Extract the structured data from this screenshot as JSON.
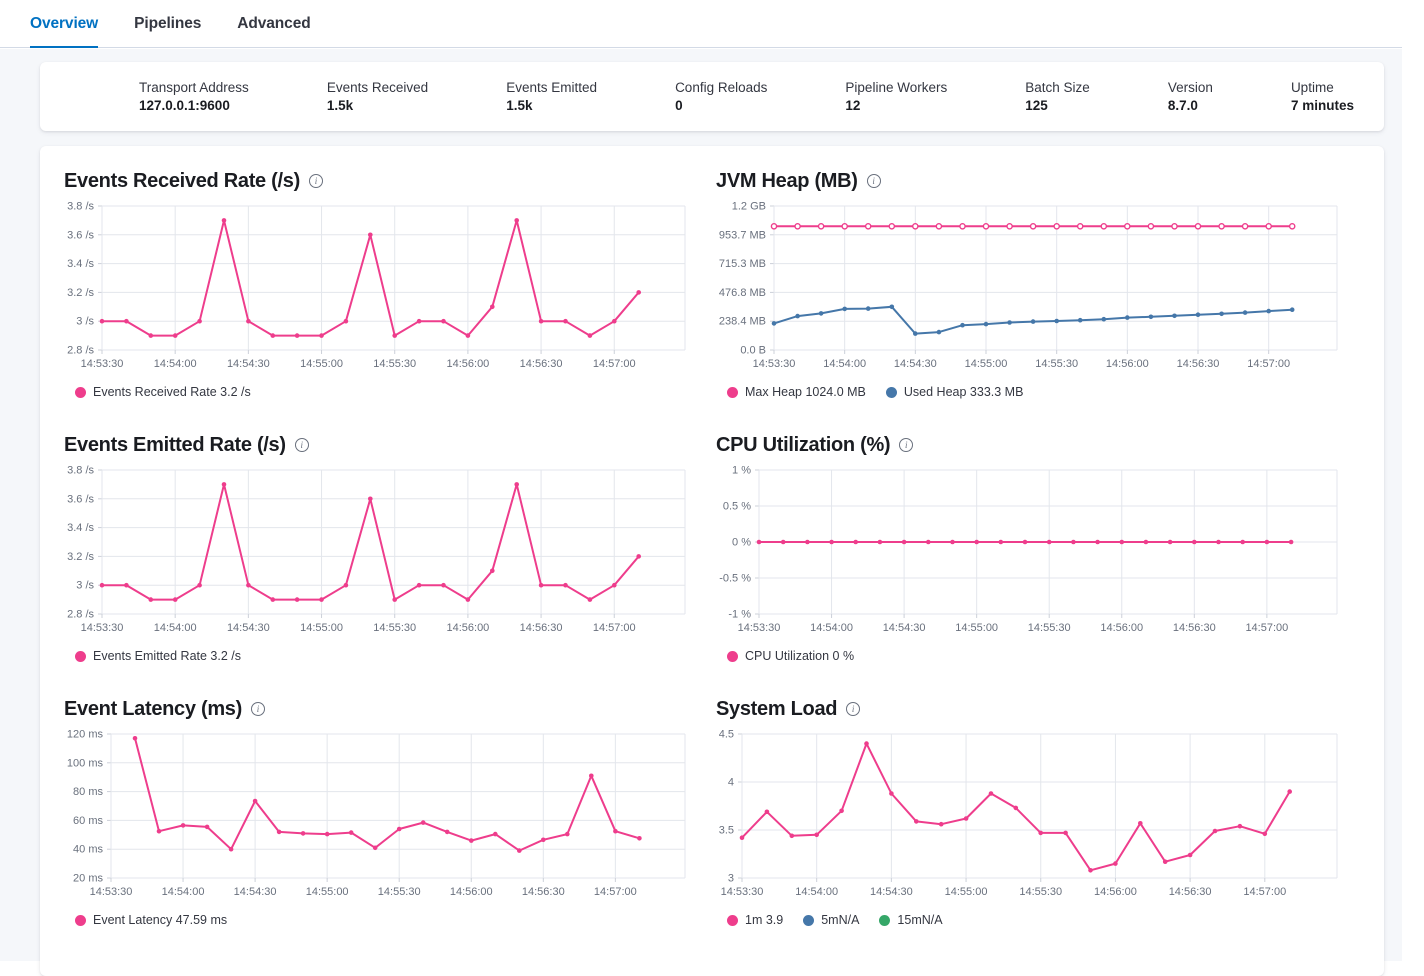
{
  "tabs": [
    {
      "label": "Overview",
      "active": true
    },
    {
      "label": "Pipelines",
      "active": false
    },
    {
      "label": "Advanced",
      "active": false
    }
  ],
  "stats": {
    "items": [
      {
        "label": "Transport Address",
        "value": "127.0.0.1:9600"
      },
      {
        "label": "Events Received",
        "value": "1.5k"
      },
      {
        "label": "Events Emitted",
        "value": "1.5k"
      },
      {
        "label": "Config Reloads",
        "value": "0"
      },
      {
        "label": "Pipeline Workers",
        "value": "12"
      },
      {
        "label": "Batch Size",
        "value": "125"
      },
      {
        "label": "Version",
        "value": "8.7.0"
      },
      {
        "label": "Uptime",
        "value": "7 minutes"
      }
    ]
  },
  "icons": {
    "info": "i"
  },
  "colors": {
    "accent_pink": "#ee3d8c",
    "series_blue": "#4577a9",
    "series_green": "#35a768",
    "tab_active": "#0071c2",
    "grid": "#e3e6ec",
    "axis_text": "#69707d"
  },
  "chart_data": [
    {
      "type": "line",
      "title": "Events Received Rate (/s)",
      "x": {
        "tick_labels": [
          "14:53:30",
          "14:54:00",
          "14:54:30",
          "14:55:00",
          "14:55:30",
          "14:56:00",
          "14:56:30",
          "14:57:00"
        ],
        "tick_positions": [
          0,
          3,
          6,
          9,
          12,
          15,
          18,
          21
        ],
        "max": 23.9
      },
      "y": {
        "min": 2.8,
        "max": 3.8,
        "ticks": [
          {
            "value": 3.8,
            "label": "3.8 /s"
          },
          {
            "value": 3.6,
            "label": "3.6 /s"
          },
          {
            "value": 3.4,
            "label": "3.4 /s"
          },
          {
            "value": 3.2,
            "label": "3.2 /s"
          },
          {
            "value": 3.0,
            "label": "3 /s"
          },
          {
            "value": 2.8,
            "label": "2.8 /s"
          }
        ]
      },
      "series": [
        {
          "name": "Events Received Rate",
          "color": "#ee3d8c",
          "marker": "filled",
          "start": 0,
          "values": [
            3,
            3,
            2.9,
            2.9,
            3,
            3.7,
            3,
            2.9,
            2.9,
            2.9,
            3,
            3.6,
            2.9,
            3,
            3,
            2.9,
            3.1,
            3.7,
            3,
            3,
            2.9,
            3,
            3.2
          ]
        }
      ],
      "legend": [
        {
          "text": "Events Received Rate 3.2 /s",
          "color": "#ee3d8c"
        }
      ]
    },
    {
      "type": "line",
      "title": "JVM Heap (MB)",
      "x": {
        "tick_labels": [
          "14:53:30",
          "14:54:00",
          "14:54:30",
          "14:55:00",
          "14:55:30",
          "14:56:00",
          "14:56:30",
          "14:57:00"
        ],
        "tick_positions": [
          0,
          3,
          6,
          9,
          12,
          15,
          18,
          21
        ],
        "max": 23.9
      },
      "y": {
        "min": 0,
        "max": 1192.1,
        "ticks": [
          {
            "value": 1192.1,
            "label": "1.2 GB"
          },
          {
            "value": 953.7,
            "label": "953.7 MB"
          },
          {
            "value": 715.3,
            "label": "715.3 MB"
          },
          {
            "value": 476.8,
            "label": "476.8 MB"
          },
          {
            "value": 238.4,
            "label": "238.4 MB"
          },
          {
            "value": 0,
            "label": "0.0 B"
          }
        ]
      },
      "series": [
        {
          "name": "Max Heap",
          "color": "#ee3d8c",
          "marker": "open",
          "start": 0,
          "values": [
            1024,
            1024,
            1024,
            1024,
            1024,
            1024,
            1024,
            1024,
            1024,
            1024,
            1024,
            1024,
            1024,
            1024,
            1024,
            1024,
            1024,
            1024,
            1024,
            1024,
            1024,
            1024,
            1024
          ]
        },
        {
          "name": "Used Heap",
          "color": "#4577a9",
          "marker": "filled",
          "start": 0,
          "values": [
            220,
            281,
            303,
            340,
            343,
            358,
            136,
            148,
            205,
            214,
            228,
            235,
            240,
            247,
            255,
            268,
            275,
            283,
            292,
            300,
            310,
            322,
            333.3
          ]
        }
      ],
      "legend": [
        {
          "text": "Max Heap 1024.0 MB",
          "color": "#ee3d8c"
        },
        {
          "text": "Used Heap 333.3 MB",
          "color": "#4577a9"
        }
      ]
    },
    {
      "type": "line",
      "title": "Events Emitted Rate (/s)",
      "x": {
        "tick_labels": [
          "14:53:30",
          "14:54:00",
          "14:54:30",
          "14:55:00",
          "14:55:30",
          "14:56:00",
          "14:56:30",
          "14:57:00"
        ],
        "tick_positions": [
          0,
          3,
          6,
          9,
          12,
          15,
          18,
          21
        ],
        "max": 23.9
      },
      "y": {
        "min": 2.8,
        "max": 3.8,
        "ticks": [
          {
            "value": 3.8,
            "label": "3.8 /s"
          },
          {
            "value": 3.6,
            "label": "3.6 /s"
          },
          {
            "value": 3.4,
            "label": "3.4 /s"
          },
          {
            "value": 3.2,
            "label": "3.2 /s"
          },
          {
            "value": 3.0,
            "label": "3 /s"
          },
          {
            "value": 2.8,
            "label": "2.8 /s"
          }
        ]
      },
      "series": [
        {
          "name": "Events Emitted Rate",
          "color": "#ee3d8c",
          "marker": "filled",
          "start": 0,
          "values": [
            3,
            3,
            2.9,
            2.9,
            3,
            3.7,
            3,
            2.9,
            2.9,
            2.9,
            3,
            3.6,
            2.9,
            3,
            3,
            2.9,
            3.1,
            3.7,
            3,
            3,
            2.9,
            3,
            3.2
          ]
        }
      ],
      "legend": [
        {
          "text": "Events Emitted Rate 3.2 /s",
          "color": "#ee3d8c"
        }
      ]
    },
    {
      "type": "line",
      "title": "CPU Utilization (%)",
      "x": {
        "tick_labels": [
          "14:53:30",
          "14:54:00",
          "14:54:30",
          "14:55:00",
          "14:55:30",
          "14:56:00",
          "14:56:30",
          "14:57:00"
        ],
        "tick_positions": [
          0,
          3,
          6,
          9,
          12,
          15,
          18,
          21
        ],
        "max": 23.9
      },
      "y": {
        "min": -1,
        "max": 1,
        "ticks": [
          {
            "value": 1,
            "label": "1 %"
          },
          {
            "value": 0.5,
            "label": "0.5 %"
          },
          {
            "value": 0,
            "label": "0 %"
          },
          {
            "value": -0.5,
            "label": "-0.5 %"
          },
          {
            "value": -1,
            "label": "-1 %"
          }
        ]
      },
      "series": [
        {
          "name": "CPU Utilization",
          "color": "#ee3d8c",
          "marker": "filled",
          "start": 0,
          "values": [
            0,
            0,
            0,
            0,
            0,
            0,
            0,
            0,
            0,
            0,
            0,
            0,
            0,
            0,
            0,
            0,
            0,
            0,
            0,
            0,
            0,
            0,
            0
          ]
        }
      ],
      "legend": [
        {
          "text": "CPU Utilization 0 %",
          "color": "#ee3d8c"
        }
      ]
    },
    {
      "type": "line",
      "title": "Event Latency (ms)",
      "x": {
        "tick_labels": [
          "14:53:30",
          "14:54:00",
          "14:54:30",
          "14:55:00",
          "14:55:30",
          "14:56:00",
          "14:56:30",
          "14:57:00"
        ],
        "tick_positions": [
          0,
          3,
          6,
          9,
          12,
          15,
          18,
          21
        ],
        "max": 23.9
      },
      "y": {
        "min": 20,
        "max": 120,
        "ticks": [
          {
            "value": 120,
            "label": "120 ms"
          },
          {
            "value": 100,
            "label": "100 ms"
          },
          {
            "value": 80,
            "label": "80 ms"
          },
          {
            "value": 60,
            "label": "60 ms"
          },
          {
            "value": 40,
            "label": "40 ms"
          },
          {
            "value": 20,
            "label": "20 ms"
          }
        ]
      },
      "series": [
        {
          "name": "Event Latency",
          "color": "#ee3d8c",
          "marker": "filled",
          "start": 1,
          "values": [
            117,
            52.5,
            56.5,
            55.5,
            40,
            73.5,
            52,
            51,
            50.5,
            51.5,
            41,
            54,
            58.5,
            52,
            46,
            50.5,
            39,
            46.5,
            50.5,
            91,
            52.5,
            47.59
          ]
        }
      ],
      "legend": [
        {
          "text": "Event Latency 47.59 ms",
          "color": "#ee3d8c"
        }
      ]
    },
    {
      "type": "line",
      "title": "System Load",
      "x": {
        "tick_labels": [
          "14:53:30",
          "14:54:00",
          "14:54:30",
          "14:55:00",
          "14:55:30",
          "14:56:00",
          "14:56:30",
          "14:57:00"
        ],
        "tick_positions": [
          0,
          3,
          6,
          9,
          12,
          15,
          18,
          21
        ],
        "max": 23.9
      },
      "y": {
        "min": 3,
        "max": 4.5,
        "ticks": [
          {
            "value": 4.5,
            "label": "4.5"
          },
          {
            "value": 4,
            "label": "4"
          },
          {
            "value": 3.5,
            "label": "3.5"
          },
          {
            "value": 3,
            "label": "3"
          }
        ]
      },
      "series": [
        {
          "name": "1m",
          "color": "#ee3d8c",
          "marker": "filled",
          "start": 0,
          "values": [
            3.42,
            3.69,
            3.44,
            3.45,
            3.7,
            4.4,
            3.88,
            3.59,
            3.56,
            3.62,
            3.88,
            3.73,
            3.47,
            3.47,
            3.08,
            3.15,
            3.57,
            3.17,
            3.24,
            3.49,
            3.54,
            3.46,
            3.9
          ]
        }
      ],
      "legend": [
        {
          "text": "1m 3.9",
          "color": "#ee3d8c"
        },
        {
          "text": "5mN/A",
          "color": "#4577a9"
        },
        {
          "text": "15mN/A",
          "color": "#35a768"
        }
      ]
    }
  ]
}
